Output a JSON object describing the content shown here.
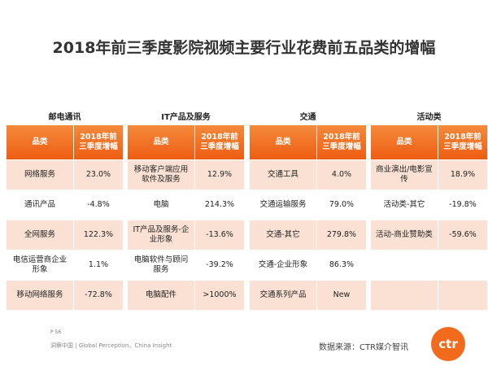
{
  "title": "2018年前三季度影院视频主要行业花费前五品类的增幅",
  "tables": [
    {
      "group": "邮电通讯",
      "header": [
        "品类",
        "2018年前三季度增幅"
      ],
      "rows": [
        [
          "网络服务",
          "23.0%"
        ],
        [
          "通讯产品",
          "-4.8%"
        ],
        [
          "全网服务",
          "122.3%"
        ],
        [
          "电信运营商企业形象",
          "1.1%"
        ],
        [
          "移动网络服务",
          "-72.8%"
        ]
      ]
    },
    {
      "group": "IT产品及服务",
      "header": [
        "品类",
        "2018年前三季度增幅"
      ],
      "rows": [
        [
          "移动客户端应用软件及服务",
          "12.9%"
        ],
        [
          "电脑",
          "214.3%"
        ],
        [
          "IT产品及服务-企业形象",
          "-13.6%"
        ],
        [
          "电脑软件与顾问服务",
          "-39.2%"
        ],
        [
          "电脑配件",
          ">1000%"
        ]
      ]
    },
    {
      "group": "交通",
      "header": [
        "品类",
        "2018年前三季度增幅"
      ],
      "rows": [
        [
          "交通工具",
          "4.0%"
        ],
        [
          "交通运输服务",
          "79.0%"
        ],
        [
          "交通-其它",
          "279.8%"
        ],
        [
          "交通-企业形象",
          "86.3%"
        ],
        [
          "交通系列产品",
          "New"
        ]
      ]
    },
    {
      "group": "活动类",
      "header": [
        "品类",
        "2018年前三季度增幅"
      ],
      "rows": [
        [
          "商业演出/电影宣传",
          "18.9%"
        ],
        [
          "活动类-其它",
          "-19.8%"
        ],
        [
          "活动-商业赞助类",
          "-59.6%"
        ]
      ]
    }
  ],
  "footer": {
    "page": "P 56",
    "tagline": "洞察中国 | Global Perception，China Insight",
    "source": "数据来源：CTR媒介智讯",
    "logo": "ctr"
  }
}
